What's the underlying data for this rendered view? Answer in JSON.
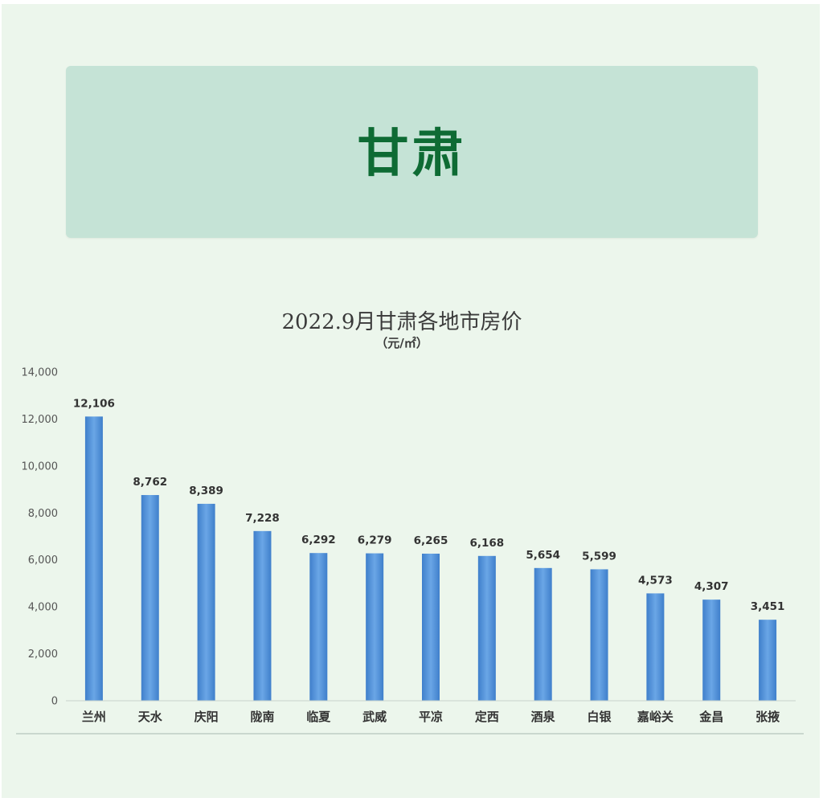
{
  "banner": {
    "title": "甘肃"
  },
  "chart_data": {
    "type": "bar",
    "title": "2022.9月甘肃各地市房价",
    "subtitle": "（元/㎡）",
    "categories": [
      "兰州",
      "天水",
      "庆阳",
      "陇南",
      "临夏",
      "武威",
      "平凉",
      "定西",
      "酒泉",
      "白银",
      "嘉峪关",
      "金昌",
      "张掖"
    ],
    "values": [
      12106,
      8762,
      8389,
      7228,
      6292,
      6279,
      6265,
      6168,
      5654,
      5599,
      4573,
      4307,
      3451
    ],
    "data_labels": [
      "12,106",
      "8,762",
      "8,389",
      "7,228",
      "6,292",
      "6,279",
      "6,265",
      "6,168",
      "5,654",
      "5,599",
      "4,573",
      "4,307",
      "3,451"
    ],
    "ylim": [
      0,
      14000
    ],
    "yticks": [
      0,
      2000,
      4000,
      6000,
      8000,
      10000,
      12000,
      14000
    ],
    "ytick_labels": [
      "0",
      "2,000",
      "4,000",
      "6,000",
      "8,000",
      "10,000",
      "12,000",
      "14,000"
    ],
    "bar_color": "#4a8cd6",
    "grid": false,
    "legend": "none"
  }
}
